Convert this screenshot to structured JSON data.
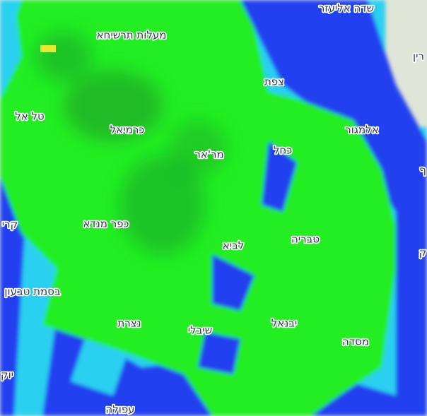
{
  "map": {
    "labels": [
      "שדה אליעזר",
      "מעלות תרשיחא",
      "רין",
      "צפת",
      "טל אל",
      "כרמיאל",
      "אלמגור",
      "כחל",
      "מר'אר",
      "ף",
      "קרי",
      "כפר מנדא",
      "לביא",
      "טבריה",
      "ק",
      "בסמת טבעון",
      "נצרת",
      "יבנאל",
      "שיבלי",
      "מסדה",
      "יוק",
      "עפולה"
    ]
  }
}
